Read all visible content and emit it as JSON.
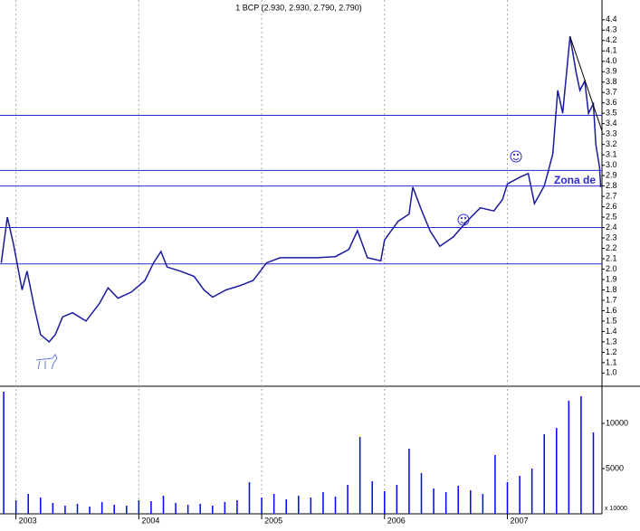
{
  "chart_data": [
    {
      "type": "line",
      "title": "1 BCP (2.930, 2.930, 2.790, 2.790)",
      "x": [
        2002.88,
        2002.93,
        2002.98,
        2003.05,
        2003.09,
        2003.15,
        2003.2,
        2003.27,
        2003.32,
        2003.38,
        2003.46,
        2003.57,
        2003.68,
        2003.75,
        2003.83,
        2003.94,
        2004.05,
        2004.12,
        2004.18,
        2004.23,
        2004.34,
        2004.45,
        2004.53,
        2004.6,
        2004.71,
        2004.82,
        2004.93,
        2005.04,
        2005.15,
        2005.3,
        2005.45,
        2005.6,
        2005.71,
        2005.78,
        2005.86,
        2005.97,
        2006.0,
        2006.11,
        2006.2,
        2006.23,
        2006.3,
        2006.37,
        2006.45,
        2006.56,
        2006.67,
        2006.78,
        2006.89,
        2006.96,
        2007.0,
        2007.11,
        2007.17,
        2007.22,
        2007.3,
        2007.33,
        2007.37,
        2007.41,
        2007.45,
        2007.51,
        2007.56,
        2007.59,
        2007.63,
        2007.66,
        2007.7,
        2007.72,
        2007.75,
        2007.76
      ],
      "series": [
        {
          "name": "BCP",
          "color": "#1a1aa0",
          "values": [
            2.06,
            2.5,
            2.24,
            1.8,
            1.98,
            1.63,
            1.37,
            1.3,
            1.37,
            1.54,
            1.58,
            1.5,
            1.67,
            1.82,
            1.72,
            1.78,
            1.89,
            2.06,
            2.17,
            2.02,
            1.98,
            1.93,
            1.8,
            1.73,
            1.8,
            1.84,
            1.89,
            2.06,
            2.11,
            2.11,
            2.11,
            2.12,
            2.19,
            2.37,
            2.11,
            2.08,
            2.28,
            2.46,
            2.53,
            2.79,
            2.57,
            2.37,
            2.22,
            2.31,
            2.46,
            2.59,
            2.56,
            2.67,
            2.82,
            2.89,
            2.92,
            2.63,
            2.8,
            2.93,
            3.11,
            3.72,
            3.5,
            4.24,
            3.89,
            3.72,
            3.81,
            3.5,
            3.59,
            3.2,
            2.98,
            2.79
          ]
        }
      ],
      "xlim": [
        2002.87,
        2007.77
      ],
      "xticks": [
        2003,
        2004,
        2005,
        2006,
        2007
      ],
      "ylim": [
        0.89,
        4.59
      ],
      "yticks": [
        {
          "value": 1.0,
          "label": "1.0"
        },
        1.1,
        1.2,
        1.3,
        1.4,
        1.5,
        1.6,
        1.7,
        1.8,
        1.9,
        {
          "value": 2.0,
          "label": "2.0"
        },
        2.1,
        2.2,
        2.3,
        2.4,
        2.5,
        2.6,
        2.7,
        2.8,
        2.9,
        {
          "value": 3.0,
          "label": "3.0"
        },
        3.1,
        3.2,
        3.3,
        3.4,
        3.5,
        3.6,
        3.7,
        3.8,
        3.9,
        {
          "value": 4.0,
          "label": "4.0"
        },
        4.1,
        4.2,
        4.3,
        4.4
      ],
      "hlines": [
        3.48,
        2.95,
        2.8,
        2.4,
        2.05
      ],
      "hline_color": "#2a2ad0",
      "trendline": {
        "x": [
          2007.51,
          2007.77
        ],
        "y": [
          4.24,
          3.33
        ]
      },
      "annotation": "Zona de"
    },
    {
      "type": "bar",
      "axis_label": "x 10000",
      "x": [
        2002.9,
        2003.0,
        2003.1,
        2003.2,
        2003.3,
        2003.4,
        2003.5,
        2003.6,
        2003.7,
        2003.8,
        2003.9,
        2004.0,
        2004.1,
        2004.2,
        2004.3,
        2004.4,
        2004.5,
        2004.6,
        2004.7,
        2004.8,
        2004.9,
        2005.0,
        2005.1,
        2005.2,
        2005.3,
        2005.4,
        2005.5,
        2005.6,
        2005.7,
        2005.8,
        2005.9,
        2006.0,
        2006.1,
        2006.2,
        2006.3,
        2006.4,
        2006.5,
        2006.6,
        2006.7,
        2006.8,
        2006.9,
        2007.0,
        2007.1,
        2007.2,
        2007.3,
        2007.4,
        2007.5,
        2007.6,
        2007.7
      ],
      "values": [
        13500,
        1500,
        2200,
        1800,
        1200,
        900,
        1100,
        800,
        1300,
        1000,
        900,
        1500,
        1400,
        2000,
        1200,
        1000,
        1100,
        900,
        1300,
        1500,
        3500,
        1800,
        2200,
        1600,
        2000,
        1800,
        2400,
        1900,
        3200,
        8500,
        3600,
        2500,
        3200,
        7200,
        4500,
        2800,
        2400,
        3100,
        2600,
        2200,
        6500,
        3500,
        4200,
        5000,
        8800,
        9500,
        12500,
        13000,
        9000
      ],
      "color": "#0000ff",
      "xlim": [
        2002.87,
        2007.77
      ],
      "ylim": [
        0,
        13800
      ],
      "yticks": [
        5000,
        10000
      ]
    }
  ]
}
